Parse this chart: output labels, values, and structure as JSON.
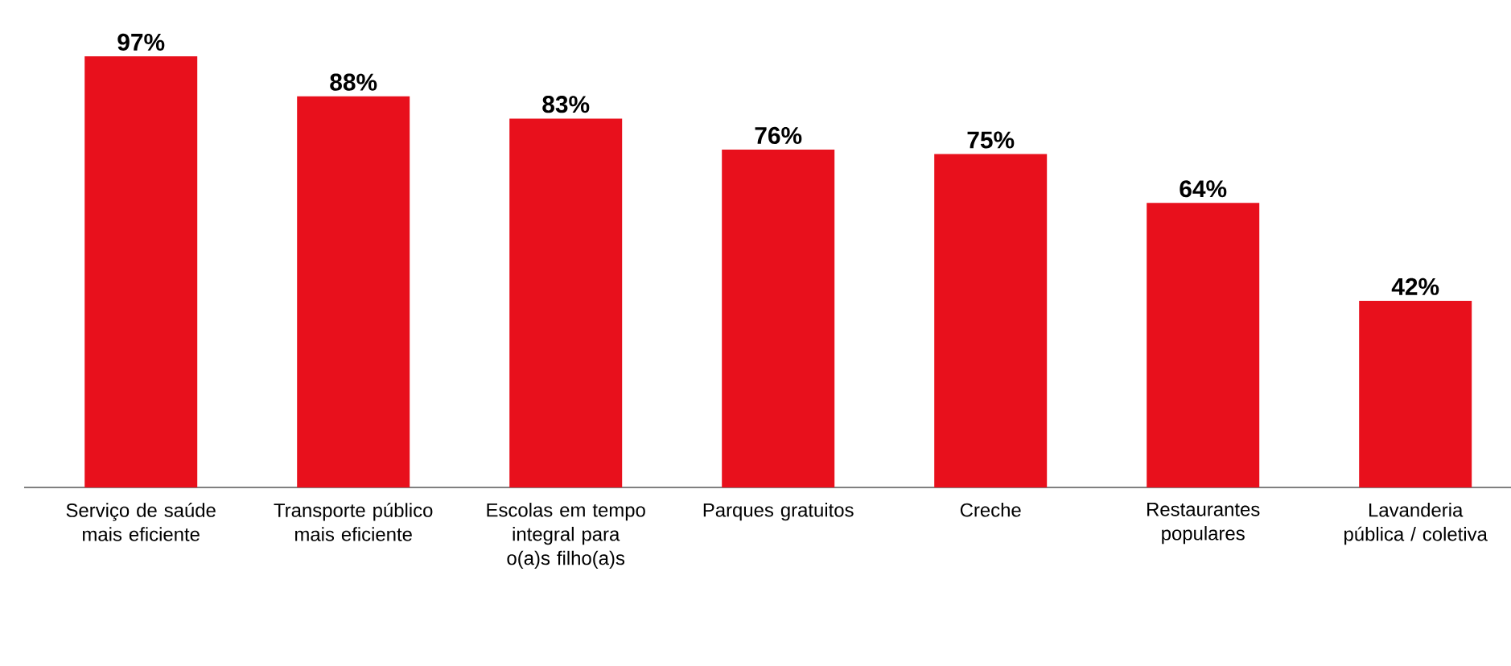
{
  "chart_data": {
    "type": "bar",
    "categories": [
      "Serviço de saúde mais eficiente",
      "Transporte público mais eficiente",
      "Escolas em tempo integral para o(a)s filho(a)s",
      "Parques gratuitos",
      "Creche",
      "Restaurantes populares",
      "Lavanderia pública / coletiva"
    ],
    "values": [
      97,
      88,
      83,
      76,
      75,
      64,
      42
    ],
    "value_labels": [
      "97%",
      "88%",
      "83%",
      "76%",
      "75%",
      "64%",
      "42%"
    ],
    "color": "#e8101c"
  }
}
